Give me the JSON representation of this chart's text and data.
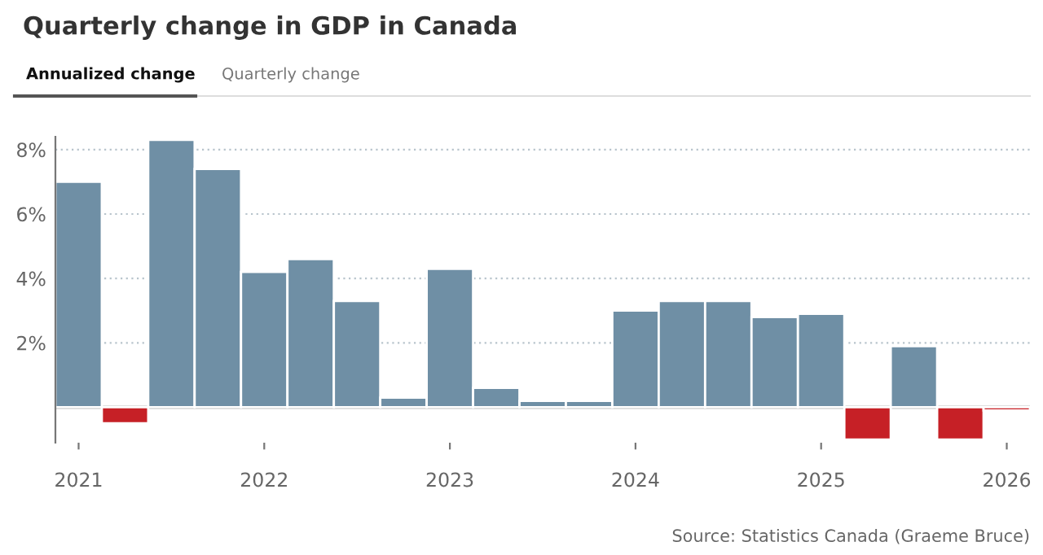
{
  "chart_data": {
    "type": "bar",
    "title": "Quarterly change in GDP in Canada",
    "categories": [
      "2021",
      null,
      null,
      null,
      "2022",
      null,
      null,
      null,
      "2023",
      null,
      null,
      null,
      "2024",
      null,
      null,
      null,
      "2025",
      null,
      null,
      null,
      "2026"
    ],
    "values": [
      7.0,
      -0.5,
      8.3,
      7.4,
      4.2,
      4.6,
      3.3,
      0.3,
      4.3,
      0.6,
      0.2,
      0.2,
      3.0,
      3.3,
      3.3,
      2.8,
      2.9,
      -1.0,
      1.9,
      -1.0,
      -0.1
    ],
    "colors": [
      "#6f8fa5",
      "#c62026",
      "#6f8fa5",
      "#6f8fa5",
      "#6f8fa5",
      "#6f8fa5",
      "#6f8fa5",
      "#6f8fa5",
      "#6f8fa5",
      "#6f8fa5",
      "#6f8fa5",
      "#6f8fa5",
      "#6f8fa5",
      "#6f8fa5",
      "#6f8fa5",
      "#6f8fa5",
      "#6f8fa5",
      "#c62026",
      "#6f8fa5",
      "#c62026",
      "#c62026"
    ],
    "ylim": [
      -1.1,
      8.4
    ],
    "yticks": [
      {
        "value": 2,
        "label": "2%"
      },
      {
        "value": 4,
        "label": "4%"
      },
      {
        "value": 6,
        "label": "6%"
      },
      {
        "value": 8,
        "label": "8%"
      }
    ],
    "grid": "y",
    "ref_lines": [
      {
        "axis": "y",
        "value": 0,
        "label": null,
        "color": "#808080"
      }
    ],
    "annotations": [
      "Annualized change",
      "Quarterly change",
      "Source: Statistics Canada (Graeme Bruce)"
    ]
  }
}
